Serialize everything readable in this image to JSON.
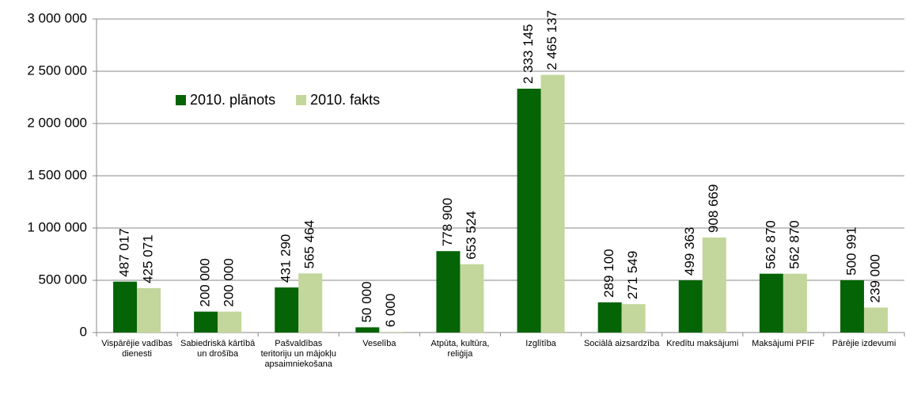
{
  "chart_data": {
    "type": "bar",
    "categories": [
      "Vispārējie vadības dienesti",
      "Sabiedriskā kārtībā un drošība",
      "Pašvaldības teritoriju un mājokļu apsaimniekošana",
      "Veselība",
      "Atpūta, kultūra, reliģija",
      "Izglītība",
      "Sociālā aizsardzība",
      "Kredītu maksājumi",
      "Maksājumi PFIF",
      "Pārējie izdevumi"
    ],
    "series": [
      {
        "name": "2010. plānots",
        "color": "#056405",
        "values": [
          487017,
          200000,
          431290,
          50000,
          778900,
          2333145,
          289100,
          499363,
          562870,
          500991
        ],
        "value_labels": [
          "487 017",
          "200 000",
          "431 290",
          "50 000",
          "778 900",
          "2 333 145",
          "289 100",
          "499 363",
          "562 870",
          "500 991"
        ]
      },
      {
        "name": "2010. fakts",
        "color": "#c3d69b",
        "values": [
          425071,
          200000,
          565464,
          6000,
          653524,
          2465137,
          271549,
          908669,
          562870,
          239000
        ],
        "value_labels": [
          "425 071",
          "200 000",
          "565 464",
          "6 000",
          "653 524",
          "2 465 137",
          "271 549",
          "908 669",
          "562 870",
          "239 000"
        ]
      }
    ],
    "ylim": [
      0,
      3000000
    ],
    "yticks": [
      0,
      {
        "value": 500000,
        "label": "500 000"
      },
      {
        "value": 1000000,
        "label": "1 000 000"
      },
      {
        "value": 1500000,
        "label": "1 500 000"
      },
      {
        "value": 2000000,
        "label": "2 000 000"
      },
      {
        "value": 2500000,
        "label": "2 500 000"
      },
      {
        "value": 3000000,
        "label": "3 000 000"
      }
    ],
    "grid": true,
    "legend": "upper left"
  }
}
